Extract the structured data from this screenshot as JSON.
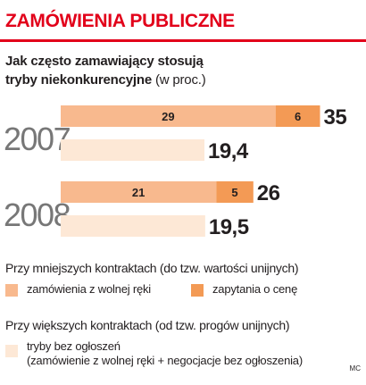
{
  "header": {
    "title": "ZAMÓWIENIA PUBLICZNE"
  },
  "subtitle": {
    "line1": "Jak często zamawiający stosują",
    "line2_strong": "tryby niekonkurencyjne",
    "line2_rest": " (w proc.)"
  },
  "colors": {
    "accent": "#e2001a",
    "free_hand": "#f8b98e",
    "price_request": "#f39a55",
    "no_notice": "#fde8d6"
  },
  "chart_data": {
    "type": "bar",
    "orientation": "horizontal",
    "stacked": true,
    "categories": [
      "2007",
      "2008"
    ],
    "groups": [
      {
        "year": "2007",
        "small_contracts": {
          "segments": [
            29,
            6
          ],
          "total_label": "35"
        },
        "large_contracts": {
          "value": 19.4,
          "label": "19,4"
        }
      },
      {
        "year": "2008",
        "small_contracts": {
          "segments": [
            21,
            5
          ],
          "total_label": "26"
        },
        "large_contracts": {
          "value": 19.5,
          "label": "19,5"
        }
      }
    ],
    "series": [
      {
        "name": "zamówienia z wolnej ręki",
        "values": [
          29,
          21
        ]
      },
      {
        "name": "zapytania o cenę",
        "values": [
          6,
          5
        ]
      },
      {
        "name": "tryby bez ogłoszeń",
        "values": [
          19.4,
          19.5
        ]
      }
    ],
    "segment_labels": [
      [
        "29",
        "6"
      ],
      [
        "21",
        "5"
      ]
    ],
    "grid": false
  },
  "legend": {
    "small_heading": "Przy mniejszych kontraktach (do tzw. wartości unijnych)",
    "free_hand": "zamówienia z wolnej ręki",
    "price_request": "zapytania o cenę",
    "large_heading": "Przy większych kontraktach (od tzw. progów unijnych)",
    "no_notice_line1": "tryby bez ogłoszeń",
    "no_notice_line2": "(zamówienie z wolnej ręki + negocjacje bez ogłoszenia)"
  },
  "credit": "MC"
}
